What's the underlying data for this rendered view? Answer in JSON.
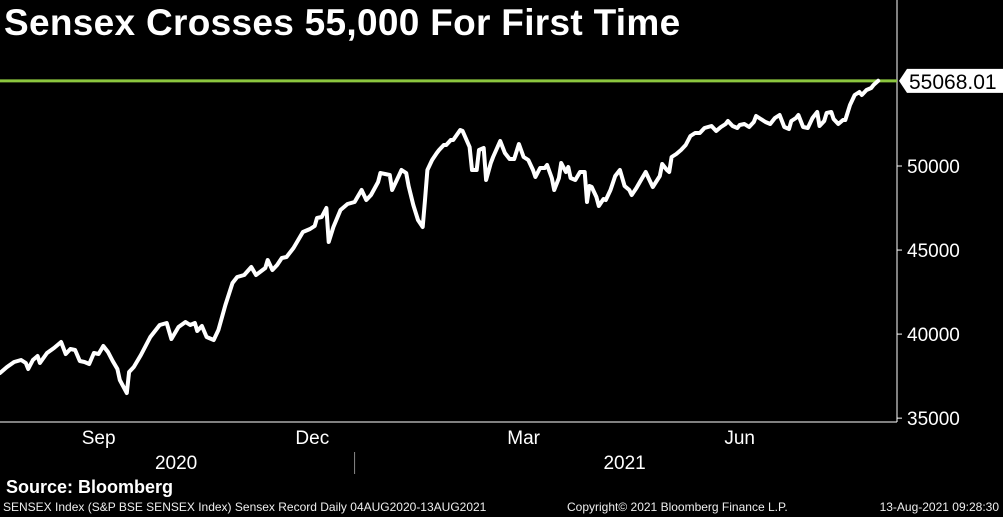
{
  "title": "Sensex Crosses 55,000 For First Time",
  "source": "Source: Bloomberg",
  "footer": {
    "description": "SENSEX Index (S&P BSE SENSEX Index) Sensex Record  Daily 04AUG2020-13AUG2021",
    "copyright": "Copyright© 2021 Bloomberg Finance L.P.",
    "timestamp": "13-Aug-2021 09:28:30"
  },
  "colors": {
    "background": "#000000",
    "line": "#ffffff",
    "record_line": "#8cc63f",
    "label_box": "#ffffff"
  },
  "chart_data": {
    "type": "line",
    "title": "Sensex Crosses 55,000 For First Time",
    "xlabel": "",
    "ylabel": "",
    "x_unit": "days since 04AUG2020",
    "xlim": [
      0,
      382
    ],
    "ylim": [
      34770,
      56010
    ],
    "y_ticks": [
      35000,
      40000,
      45000,
      50000
    ],
    "y_tick_labels": [
      "35000",
      "40000",
      "45000",
      "50000"
    ],
    "x_ticks": [
      {
        "day": 42,
        "label": "Sep"
      },
      {
        "day": 133,
        "label": "Dec"
      },
      {
        "day": 223,
        "label": "Mar"
      },
      {
        "day": 315,
        "label": "Jun"
      }
    ],
    "year_labels": [
      {
        "day": 75,
        "label": "2020"
      },
      {
        "day": 266,
        "label": "2021"
      }
    ],
    "year_divider_day": 151,
    "record_level": 55068.01,
    "record_label": "55068.01",
    "series": [
      {
        "name": "SENSEX Index",
        "points": [
          [
            0,
            37683
          ],
          [
            3,
            38040
          ],
          [
            6,
            38338
          ],
          [
            9,
            38457
          ],
          [
            11,
            38278
          ],
          [
            12,
            37921
          ],
          [
            14,
            38457
          ],
          [
            16,
            38695
          ],
          [
            17,
            38278
          ],
          [
            20,
            38874
          ],
          [
            23,
            39171
          ],
          [
            26,
            39528
          ],
          [
            28,
            38814
          ],
          [
            30,
            39112
          ],
          [
            32,
            39052
          ],
          [
            34,
            38398
          ],
          [
            36,
            38338
          ],
          [
            38,
            38219
          ],
          [
            40,
            38874
          ],
          [
            42,
            38814
          ],
          [
            44,
            39290
          ],
          [
            46,
            38933
          ],
          [
            48,
            38398
          ],
          [
            50,
            37921
          ],
          [
            51,
            37267
          ],
          [
            54,
            36494
          ],
          [
            55,
            37743
          ],
          [
            57,
            38040
          ],
          [
            60,
            38755
          ],
          [
            64,
            39826
          ],
          [
            68,
            40540
          ],
          [
            71,
            40660
          ],
          [
            73,
            39707
          ],
          [
            76,
            40421
          ],
          [
            79,
            40718
          ],
          [
            81,
            40540
          ],
          [
            83,
            40660
          ],
          [
            84,
            40183
          ],
          [
            86,
            40480
          ],
          [
            88,
            39826
          ],
          [
            91,
            39647
          ],
          [
            93,
            40242
          ],
          [
            96,
            41730
          ],
          [
            99,
            43039
          ],
          [
            101,
            43396
          ],
          [
            104,
            43515
          ],
          [
            107,
            43990
          ],
          [
            109,
            43515
          ],
          [
            113,
            43931
          ],
          [
            114,
            44407
          ],
          [
            116,
            43812
          ],
          [
            118,
            44110
          ],
          [
            120,
            44526
          ],
          [
            122,
            44586
          ],
          [
            125,
            45121
          ],
          [
            127,
            45597
          ],
          [
            129,
            46073
          ],
          [
            132,
            46252
          ],
          [
            134,
            46430
          ],
          [
            135,
            46906
          ],
          [
            137,
            46966
          ],
          [
            139,
            47501
          ],
          [
            140,
            45478
          ],
          [
            142,
            46371
          ],
          [
            145,
            47382
          ],
          [
            148,
            47739
          ],
          [
            151,
            47858
          ],
          [
            154,
            48572
          ],
          [
            156,
            47977
          ],
          [
            158,
            48274
          ],
          [
            161,
            49048
          ],
          [
            162,
            49583
          ],
          [
            164,
            49524
          ],
          [
            166,
            49464
          ],
          [
            167,
            48572
          ],
          [
            170,
            49464
          ],
          [
            171,
            49762
          ],
          [
            173,
            49583
          ],
          [
            174,
            48810
          ],
          [
            176,
            47680
          ],
          [
            178,
            46787
          ],
          [
            180,
            46371
          ],
          [
            181,
            47977
          ],
          [
            182,
            49762
          ],
          [
            184,
            50357
          ],
          [
            186,
            50774
          ],
          [
            187,
            50952
          ],
          [
            189,
            51250
          ],
          [
            190,
            51250
          ],
          [
            192,
            51547
          ],
          [
            193,
            51547
          ],
          [
            196,
            52142
          ],
          [
            197,
            52083
          ],
          [
            200,
            51131
          ],
          [
            201,
            49762
          ],
          [
            203,
            49762
          ],
          [
            204,
            50952
          ],
          [
            206,
            51071
          ],
          [
            207,
            49167
          ],
          [
            209,
            50179
          ],
          [
            210,
            50536
          ],
          [
            213,
            51488
          ],
          [
            215,
            50774
          ],
          [
            217,
            50417
          ],
          [
            219,
            50417
          ],
          [
            221,
            51309
          ],
          [
            223,
            50536
          ],
          [
            225,
            50357
          ],
          [
            227,
            49762
          ],
          [
            228,
            49345
          ],
          [
            230,
            49881
          ],
          [
            232,
            49881
          ],
          [
            233,
            50060
          ],
          [
            235,
            49286
          ],
          [
            236,
            48572
          ],
          [
            238,
            49286
          ],
          [
            239,
            50179
          ],
          [
            241,
            49643
          ],
          [
            242,
            49940
          ],
          [
            243,
            49286
          ],
          [
            245,
            49167
          ],
          [
            247,
            49643
          ],
          [
            249,
            49643
          ],
          [
            250,
            47858
          ],
          [
            251,
            48810
          ],
          [
            252,
            48750
          ],
          [
            254,
            48155
          ],
          [
            255,
            47620
          ],
          [
            257,
            48036
          ],
          [
            258,
            47977
          ],
          [
            260,
            48572
          ],
          [
            262,
            49405
          ],
          [
            264,
            49762
          ],
          [
            266,
            48810
          ],
          [
            268,
            48572
          ],
          [
            269,
            48274
          ],
          [
            271,
            48691
          ],
          [
            273,
            49167
          ],
          [
            275,
            49643
          ],
          [
            277,
            49048
          ],
          [
            278,
            48750
          ],
          [
            281,
            49405
          ],
          [
            282,
            50119
          ],
          [
            284,
            49762
          ],
          [
            285,
            49643
          ],
          [
            286,
            50536
          ],
          [
            288,
            50714
          ],
          [
            290,
            50952
          ],
          [
            292,
            51250
          ],
          [
            294,
            51785
          ],
          [
            296,
            51964
          ],
          [
            298,
            51964
          ],
          [
            300,
            52261
          ],
          [
            303,
            52380
          ],
          [
            305,
            52083
          ],
          [
            307,
            52321
          ],
          [
            309,
            52499
          ],
          [
            310,
            52678
          ],
          [
            312,
            52380
          ],
          [
            314,
            52261
          ],
          [
            315,
            52440
          ],
          [
            317,
            52499
          ],
          [
            319,
            52321
          ],
          [
            321,
            52618
          ],
          [
            322,
            52975
          ],
          [
            324,
            52797
          ],
          [
            326,
            52618
          ],
          [
            328,
            52499
          ],
          [
            330,
            52856
          ],
          [
            332,
            53035
          ],
          [
            334,
            52321
          ],
          [
            336,
            52202
          ],
          [
            337,
            52678
          ],
          [
            339,
            52856
          ],
          [
            340,
            53035
          ],
          [
            342,
            52321
          ],
          [
            344,
            52261
          ],
          [
            346,
            52856
          ],
          [
            348,
            53213
          ],
          [
            349,
            52380
          ],
          [
            351,
            52678
          ],
          [
            352,
            53154
          ],
          [
            354,
            53213
          ],
          [
            355,
            52797
          ],
          [
            357,
            52499
          ],
          [
            359,
            52737
          ],
          [
            360,
            52737
          ],
          [
            362,
            53630
          ],
          [
            364,
            54225
          ],
          [
            366,
            54403
          ],
          [
            367,
            54225
          ],
          [
            369,
            54522
          ],
          [
            371,
            54641
          ],
          [
            372,
            54820
          ],
          [
            374,
            55068
          ]
        ]
      }
    ]
  }
}
